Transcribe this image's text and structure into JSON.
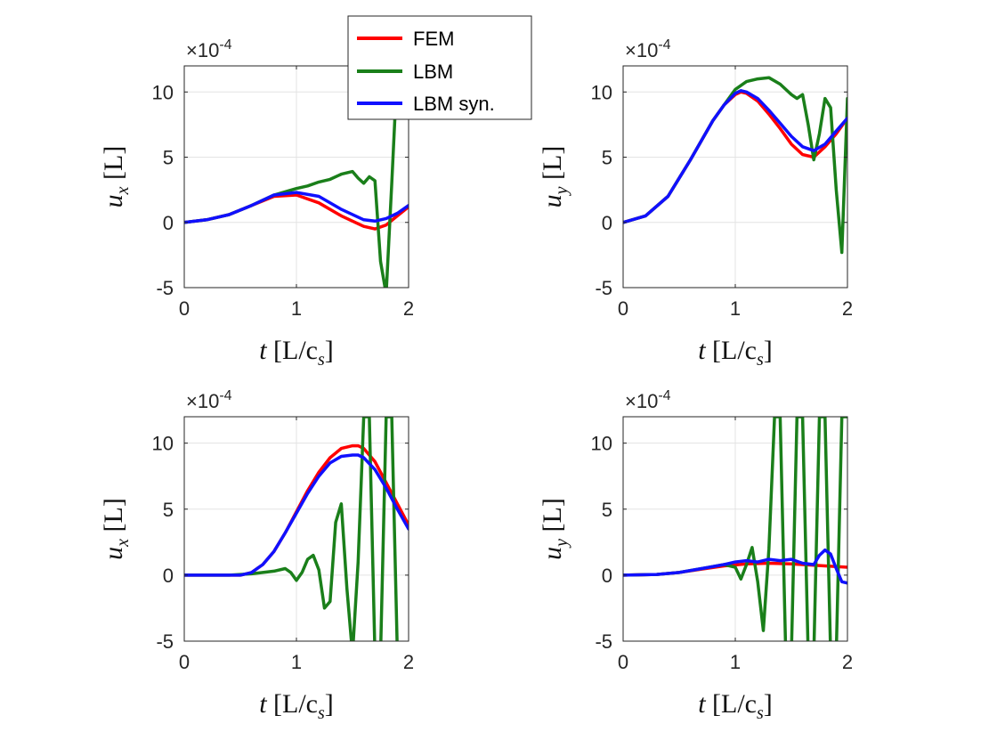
{
  "legend": {
    "entries": [
      {
        "label": "FEM",
        "color": "#ff0000"
      },
      {
        "label": "LBM",
        "color": "#1a7f1a"
      },
      {
        "label": "LBM syn.",
        "color": "#1010ff"
      }
    ]
  },
  "chart_data": [
    {
      "type": "line",
      "panel": "top-left",
      "xlabel": {
        "main": "t",
        "bracket": "[L/c",
        "sub": "s",
        "close": "]"
      },
      "ylabel": {
        "main": "u",
        "sub": "x",
        "unit": "[L]"
      },
      "xlim": [
        0,
        2
      ],
      "ylim": [
        -5,
        12
      ],
      "xticks": [
        0,
        1,
        2
      ],
      "xtick_labels": [
        "0",
        "1",
        "2"
      ],
      "yticks": [
        -5,
        0,
        5,
        10
      ],
      "ytick_labels": [
        "-5",
        "0",
        "5",
        "10"
      ],
      "exponent": {
        "base": "×10",
        "power": "-4"
      },
      "grid": true,
      "series": [
        {
          "name": "FEM",
          "color": "#ff0000",
          "x": [
            0,
            0.2,
            0.4,
            0.6,
            0.8,
            1.0,
            1.2,
            1.4,
            1.6,
            1.7,
            1.8,
            1.9,
            2.0
          ],
          "y": [
            0,
            0.2,
            0.6,
            1.3,
            2.0,
            2.1,
            1.5,
            0.5,
            -0.3,
            -0.5,
            -0.2,
            0.5,
            1.2
          ]
        },
        {
          "name": "LBM",
          "color": "#1a7f1a",
          "x": [
            0,
            0.2,
            0.4,
            0.6,
            0.8,
            1.0,
            1.1,
            1.2,
            1.3,
            1.4,
            1.5,
            1.55,
            1.6,
            1.65,
            1.7,
            1.75,
            1.8,
            1.85,
            1.9
          ],
          "y": [
            0,
            0.2,
            0.6,
            1.3,
            2.1,
            2.6,
            2.8,
            3.1,
            3.3,
            3.7,
            3.9,
            3.4,
            3.0,
            3.5,
            3.2,
            -3.0,
            -5.5,
            3.0,
            12.0
          ]
        },
        {
          "name": "LBM syn.",
          "color": "#1010ff",
          "x": [
            0,
            0.2,
            0.4,
            0.6,
            0.8,
            1.0,
            1.2,
            1.4,
            1.6,
            1.7,
            1.8,
            1.9,
            2.0
          ],
          "y": [
            0,
            0.2,
            0.6,
            1.3,
            2.1,
            2.3,
            2.0,
            1.0,
            0.2,
            0.1,
            0.3,
            0.7,
            1.3
          ]
        }
      ]
    },
    {
      "type": "line",
      "panel": "top-right",
      "xlabel": {
        "main": "t",
        "bracket": "[L/c",
        "sub": "s",
        "close": "]"
      },
      "ylabel": {
        "main": "u",
        "sub": "y",
        "unit": "[L]"
      },
      "xlim": [
        0,
        2
      ],
      "ylim": [
        -5,
        12
      ],
      "xticks": [
        0,
        1,
        2
      ],
      "xtick_labels": [
        "0",
        "1",
        "2"
      ],
      "yticks": [
        -5,
        0,
        5,
        10
      ],
      "ytick_labels": [
        "-5",
        "0",
        "5",
        "10"
      ],
      "exponent": {
        "base": "×10",
        "power": "-4"
      },
      "grid": true,
      "series": [
        {
          "name": "FEM",
          "color": "#ff0000",
          "x": [
            0,
            0.2,
            0.4,
            0.6,
            0.8,
            0.9,
            1.0,
            1.05,
            1.1,
            1.2,
            1.3,
            1.4,
            1.5,
            1.6,
            1.7,
            1.8,
            1.9,
            2.0
          ],
          "y": [
            0,
            0.5,
            2.0,
            4.8,
            7.8,
            9.0,
            9.8,
            10.0,
            9.9,
            9.3,
            8.3,
            7.2,
            6.0,
            5.2,
            5.0,
            5.8,
            6.8,
            8.0
          ]
        },
        {
          "name": "LBM",
          "color": "#1a7f1a",
          "x": [
            0,
            0.2,
            0.4,
            0.6,
            0.8,
            0.9,
            1.0,
            1.1,
            1.2,
            1.3,
            1.4,
            1.5,
            1.55,
            1.6,
            1.65,
            1.7,
            1.75,
            1.8,
            1.85,
            1.9,
            1.95,
            2.0
          ],
          "y": [
            0,
            0.5,
            2.0,
            4.8,
            7.8,
            9.0,
            10.2,
            10.8,
            11.0,
            11.1,
            10.6,
            9.8,
            9.5,
            9.8,
            7.5,
            4.8,
            6.8,
            9.5,
            8.8,
            2.5,
            -2.3,
            9.5
          ]
        },
        {
          "name": "LBM syn.",
          "color": "#1010ff",
          "x": [
            0,
            0.2,
            0.4,
            0.6,
            0.8,
            0.9,
            1.0,
            1.05,
            1.1,
            1.2,
            1.3,
            1.4,
            1.5,
            1.6,
            1.7,
            1.8,
            1.9,
            2.0
          ],
          "y": [
            0,
            0.5,
            2.0,
            4.8,
            7.8,
            9.0,
            9.9,
            10.1,
            10.0,
            9.5,
            8.6,
            7.6,
            6.6,
            5.8,
            5.5,
            6.0,
            7.0,
            8.0
          ]
        }
      ]
    },
    {
      "type": "line",
      "panel": "bottom-left",
      "xlabel": {
        "main": "t",
        "bracket": "[L/c",
        "sub": "s",
        "close": "]"
      },
      "ylabel": {
        "main": "u",
        "sub": "x",
        "unit": "[L]"
      },
      "xlim": [
        0,
        2
      ],
      "ylim": [
        -5,
        12
      ],
      "xticks": [
        0,
        1,
        2
      ],
      "xtick_labels": [
        "0",
        "1",
        "2"
      ],
      "yticks": [
        -5,
        0,
        5,
        10
      ],
      "ytick_labels": [
        "-5",
        "0",
        "5",
        "10"
      ],
      "exponent": {
        "base": "×10",
        "power": "-4"
      },
      "grid": true,
      "series": [
        {
          "name": "FEM",
          "color": "#ff0000",
          "x": [
            0,
            0.4,
            0.5,
            0.6,
            0.7,
            0.8,
            0.9,
            1.0,
            1.1,
            1.2,
            1.3,
            1.4,
            1.5,
            1.55,
            1.6,
            1.7,
            1.8,
            1.9,
            2.0
          ],
          "y": [
            0,
            0,
            0,
            0.2,
            0.8,
            1.8,
            3.2,
            4.8,
            6.4,
            7.8,
            8.9,
            9.6,
            9.8,
            9.8,
            9.6,
            8.6,
            7.0,
            5.4,
            3.8
          ]
        },
        {
          "name": "LBM",
          "color": "#1a7f1a",
          "x": [
            0,
            0.4,
            0.6,
            0.8,
            0.9,
            0.95,
            1.0,
            1.05,
            1.1,
            1.15,
            1.2,
            1.25,
            1.3,
            1.35,
            1.4,
            1.45,
            1.5,
            1.55,
            1.6,
            1.65,
            1.7,
            1.75,
            1.8,
            1.85,
            1.9
          ],
          "y": [
            0,
            0,
            0.1,
            0.3,
            0.5,
            0.2,
            -0.4,
            0.2,
            1.2,
            1.5,
            0.4,
            -2.5,
            -2.0,
            4.0,
            5.4,
            -1.0,
            -6.0,
            1.0,
            12.0,
            12.0,
            -6.0,
            -6.0,
            12.0,
            12.0,
            -6.0
          ]
        },
        {
          "name": "LBM syn.",
          "color": "#1010ff",
          "x": [
            0,
            0.4,
            0.5,
            0.6,
            0.7,
            0.8,
            0.9,
            1.0,
            1.1,
            1.2,
            1.3,
            1.4,
            1.5,
            1.55,
            1.6,
            1.7,
            1.8,
            1.9,
            2.0
          ],
          "y": [
            0,
            0,
            0,
            0.2,
            0.8,
            1.8,
            3.2,
            4.7,
            6.2,
            7.5,
            8.5,
            9.0,
            9.1,
            9.1,
            8.9,
            8.0,
            6.6,
            5.0,
            3.5
          ]
        }
      ]
    },
    {
      "type": "line",
      "panel": "bottom-right",
      "xlabel": {
        "main": "t",
        "bracket": "[L/c",
        "sub": "s",
        "close": "]"
      },
      "ylabel": {
        "main": "u",
        "sub": "y",
        "unit": "[L]"
      },
      "xlim": [
        0,
        2
      ],
      "ylim": [
        -5,
        12
      ],
      "xticks": [
        0,
        1,
        2
      ],
      "xtick_labels": [
        "0",
        "1",
        "2"
      ],
      "yticks": [
        -5,
        0,
        5,
        10
      ],
      "ytick_labels": [
        "-5",
        "0",
        "5",
        "10"
      ],
      "exponent": {
        "base": "×10",
        "power": "-4"
      },
      "grid": true,
      "series": [
        {
          "name": "FEM",
          "color": "#ff0000",
          "x": [
            0,
            0.3,
            0.5,
            0.7,
            0.9,
            1.1,
            1.3,
            1.5,
            1.7,
            1.9,
            2.0
          ],
          "y": [
            0,
            0.05,
            0.2,
            0.45,
            0.7,
            0.85,
            0.9,
            0.85,
            0.75,
            0.65,
            0.6
          ]
        },
        {
          "name": "LBM",
          "color": "#1a7f1a",
          "x": [
            0,
            0.3,
            0.5,
            0.7,
            0.9,
            1.0,
            1.05,
            1.1,
            1.15,
            1.2,
            1.25,
            1.3,
            1.35,
            1.4,
            1.45,
            1.5,
            1.55,
            1.6,
            1.65,
            1.7,
            1.75,
            1.8,
            1.85,
            1.9,
            1.95,
            2.0
          ],
          "y": [
            0,
            0.05,
            0.2,
            0.5,
            0.8,
            0.6,
            -0.3,
            0.8,
            2.1,
            -0.5,
            -4.2,
            2.0,
            12.0,
            12.0,
            -6.0,
            -6.0,
            12.0,
            12.0,
            -6.0,
            -6.0,
            12.0,
            12.0,
            -6.0,
            -6.0,
            12.0,
            12.0
          ]
        },
        {
          "name": "LBM syn.",
          "color": "#1010ff",
          "x": [
            0,
            0.3,
            0.5,
            0.7,
            0.9,
            1.0,
            1.1,
            1.2,
            1.3,
            1.4,
            1.5,
            1.6,
            1.7,
            1.75,
            1.8,
            1.85,
            1.9,
            1.95,
            2.0
          ],
          "y": [
            0,
            0.05,
            0.2,
            0.5,
            0.8,
            1.0,
            1.1,
            1.0,
            1.2,
            1.1,
            1.2,
            0.9,
            0.8,
            1.5,
            1.9,
            1.6,
            0.5,
            -0.5,
            -0.6
          ]
        }
      ]
    }
  ]
}
